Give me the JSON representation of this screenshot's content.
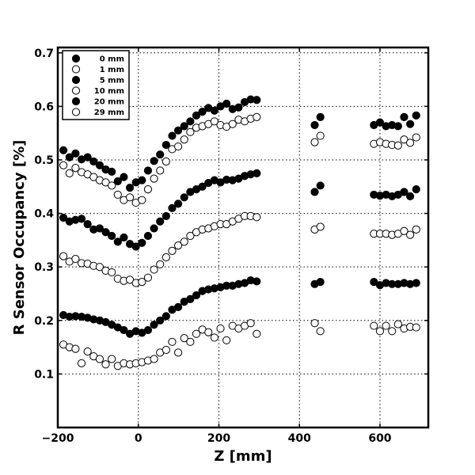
{
  "chart_data": {
    "type": "scatter",
    "title": "",
    "xlabel": "Z [mm]",
    "ylabel": "R Sensor Occupancy [%]",
    "xlim": [
      -200,
      720
    ],
    "ylim": [
      0.0,
      0.71
    ],
    "xticks": [
      -200,
      0,
      200,
      400,
      600
    ],
    "xtick_labels": [
      "−200",
      "0",
      "200",
      "400",
      "600"
    ],
    "yticks": [
      0.1,
      0.2,
      0.3,
      0.4,
      0.5,
      0.6,
      0.7
    ],
    "ytick_labels": [
      "0.1",
      "0.2",
      "0.3",
      "0.4",
      "0.5",
      "0.6",
      "0.7"
    ],
    "grid": true,
    "legend_position": "top-left",
    "x": [
      -186,
      -171,
      -156,
      -141,
      -126,
      -111,
      -96,
      -81,
      -66,
      -51,
      -36,
      -21,
      -6,
      9,
      24,
      39,
      54,
      69,
      84,
      99,
      114,
      129,
      144,
      159,
      174,
      189,
      204,
      219,
      234,
      249,
      264,
      279,
      294,
      438,
      452,
      585,
      600,
      615,
      630,
      645,
      660,
      675,
      690
    ],
    "series": [
      {
        "name": "0 mm",
        "marker": "filled",
        "values": [
          0.518,
          0.505,
          0.512,
          0.501,
          0.505,
          0.497,
          0.49,
          0.482,
          0.478,
          0.46,
          0.468,
          0.448,
          0.458,
          0.462,
          0.48,
          0.498,
          0.51,
          0.528,
          0.545,
          0.555,
          0.563,
          0.572,
          0.583,
          0.59,
          0.597,
          0.592,
          0.6,
          0.605,
          0.595,
          0.598,
          0.608,
          0.613,
          0.612,
          0.565,
          0.58,
          0.565,
          0.57,
          0.563,
          0.565,
          0.563,
          0.58,
          0.567,
          0.583
        ]
      },
      {
        "name": "1 mm",
        "marker": "open",
        "values": [
          0.49,
          0.475,
          0.485,
          0.477,
          0.473,
          0.468,
          0.462,
          0.458,
          0.452,
          0.435,
          0.425,
          0.43,
          0.42,
          0.425,
          0.445,
          0.465,
          0.48,
          0.497,
          0.52,
          0.525,
          0.538,
          0.552,
          0.56,
          0.563,
          0.567,
          0.572,
          0.565,
          0.562,
          0.567,
          0.575,
          0.572,
          0.577,
          0.58,
          0.533,
          0.545,
          0.53,
          0.533,
          0.53,
          0.528,
          0.527,
          0.538,
          0.532,
          0.542
        ]
      },
      {
        "name": "5 mm",
        "marker": "filled",
        "values": [
          0.392,
          0.385,
          0.388,
          0.39,
          0.38,
          0.37,
          0.372,
          0.365,
          0.358,
          0.347,
          0.355,
          0.343,
          0.338,
          0.345,
          0.358,
          0.372,
          0.385,
          0.395,
          0.41,
          0.418,
          0.43,
          0.44,
          0.445,
          0.45,
          0.457,
          0.462,
          0.458,
          0.463,
          0.462,
          0.465,
          0.47,
          0.473,
          0.475,
          0.44,
          0.452,
          0.435,
          0.433,
          0.435,
          0.432,
          0.435,
          0.44,
          0.432,
          0.445
        ]
      },
      {
        "name": "10 mm",
        "marker": "open",
        "values": [
          0.32,
          0.31,
          0.315,
          0.307,
          0.306,
          0.302,
          0.3,
          0.293,
          0.29,
          0.278,
          0.274,
          0.276,
          0.27,
          0.272,
          0.28,
          0.295,
          0.305,
          0.318,
          0.33,
          0.34,
          0.347,
          0.358,
          0.365,
          0.37,
          0.372,
          0.376,
          0.38,
          0.38,
          0.385,
          0.39,
          0.395,
          0.395,
          0.393,
          0.37,
          0.375,
          0.362,
          0.362,
          0.362,
          0.36,
          0.362,
          0.367,
          0.36,
          0.37
        ]
      },
      {
        "name": "20 mm",
        "marker": "filled",
        "values": [
          0.21,
          0.207,
          0.208,
          0.207,
          0.205,
          0.202,
          0.2,
          0.197,
          0.192,
          0.187,
          0.182,
          0.175,
          0.18,
          0.177,
          0.182,
          0.192,
          0.2,
          0.208,
          0.22,
          0.225,
          0.235,
          0.24,
          0.247,
          0.255,
          0.258,
          0.26,
          0.262,
          0.265,
          0.265,
          0.268,
          0.27,
          0.275,
          0.273,
          0.268,
          0.272,
          0.272,
          0.266,
          0.27,
          0.268,
          0.268,
          0.27,
          0.268,
          0.27
        ]
      },
      {
        "name": "29 mm",
        "marker": "open",
        "values": [
          0.155,
          0.15,
          0.147,
          0.12,
          0.142,
          0.133,
          0.128,
          0.118,
          0.128,
          0.115,
          0.12,
          0.118,
          0.12,
          0.122,
          0.125,
          0.128,
          0.14,
          0.145,
          0.16,
          0.14,
          0.167,
          0.16,
          0.175,
          0.183,
          0.178,
          0.168,
          0.185,
          0.163,
          0.19,
          0.185,
          0.19,
          0.195,
          0.175,
          0.195,
          0.18,
          0.19,
          0.18,
          0.19,
          0.18,
          0.193,
          0.185,
          0.188,
          0.187
        ]
      }
    ]
  }
}
